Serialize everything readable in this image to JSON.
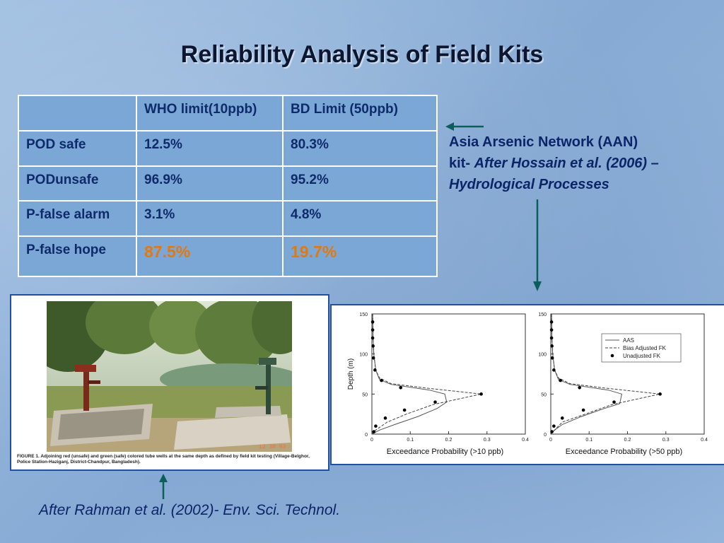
{
  "slide": {
    "title": "Reliability Analysis of Field Kits",
    "table": {
      "headers": [
        "",
        "WHO limit(10ppb)",
        "BD Limit (50ppb)"
      ],
      "rows": [
        {
          "label": "POD safe",
          "who": "12.5%",
          "bd": "80.3%"
        },
        {
          "label": "PODunsafe",
          "who": "96.9%",
          "bd": "95.2%"
        },
        {
          "label": "P-false alarm",
          "who": "3.1%",
          "bd": "4.8%"
        },
        {
          "label": "P-false hope",
          "who": "87.5%",
          "bd": "19.7%"
        }
      ]
    },
    "aan_note": {
      "line1": "Asia Arsenic Network (AAN)",
      "kit_prefix": "kit- ",
      "kit_italic": "After Hossain et al. (2006) –",
      "line3": "Hydrological Processes"
    },
    "caption": "After Rahman et al. (2002)- Env. Sci. Technol.",
    "figure_caption": "FIGURE 1.  Adjoining red (unsafe) and green (safe) colored tube wells at the same depth as defined by field kit testing (Village-Belghor, Police Station-Haziganj, District-Chandpur, Bangladesh).",
    "photo_stamp": "12 30 93",
    "colors": {
      "accent_orange": "#e07a10",
      "text_navy": "#0c2468",
      "arrow": "#0c5e5a"
    }
  },
  "chart_data": [
    {
      "type": "line",
      "xlabel": "Exceedance Probability (>10 ppb)",
      "ylabel": "Depth (m)",
      "xlim": [
        0,
        0.4
      ],
      "ylim": [
        0,
        150
      ],
      "xticks": [
        "0",
        "0.1",
        "0.2",
        "0.3",
        "0.4"
      ],
      "yticks": [
        "0",
        "50",
        "100",
        "150"
      ],
      "legend": null,
      "series": [
        {
          "name": "AAS",
          "style": "solid",
          "points": [
            [
              0.0,
              0
            ],
            [
              0.02,
              5
            ],
            [
              0.06,
              12
            ],
            [
              0.12,
              22
            ],
            [
              0.17,
              32
            ],
            [
              0.195,
              40
            ],
            [
              0.19,
              50
            ],
            [
              0.15,
              55
            ],
            [
              0.05,
              62
            ],
            [
              0.02,
              68
            ],
            [
              0.01,
              80
            ],
            [
              0.005,
              100
            ],
            [
              0.003,
              120
            ],
            [
              0.002,
              150
            ]
          ]
        },
        {
          "name": "Bias Adjusted FK",
          "style": "dashed",
          "points": [
            [
              0.0,
              0
            ],
            [
              0.01,
              5
            ],
            [
              0.04,
              15
            ],
            [
              0.09,
              25
            ],
            [
              0.16,
              37
            ],
            [
              0.285,
              50
            ],
            [
              0.15,
              57
            ],
            [
              0.05,
              63
            ],
            [
              0.02,
              70
            ],
            [
              0.01,
              80
            ],
            [
              0.005,
              100
            ],
            [
              0.003,
              120
            ],
            [
              0.002,
              150
            ]
          ]
        },
        {
          "name": "Unadjusted FK",
          "style": "points",
          "points": [
            [
              0.005,
              3
            ],
            [
              0.01,
              10
            ],
            [
              0.035,
              20
            ],
            [
              0.085,
              30
            ],
            [
              0.165,
              40
            ],
            [
              0.285,
              50
            ],
            [
              0.075,
              58
            ],
            [
              0.025,
              67
            ],
            [
              0.008,
              80
            ],
            [
              0.004,
              95
            ],
            [
              0.003,
              110
            ],
            [
              0.002,
              120
            ],
            [
              0.002,
              130
            ],
            [
              0.002,
              140
            ]
          ]
        }
      ]
    },
    {
      "type": "line",
      "xlabel": "Exceedance Probability (>50 ppb)",
      "ylabel": "",
      "xlim": [
        0,
        0.4
      ],
      "ylim": [
        0,
        150
      ],
      "xticks": [
        "0",
        "0.1",
        "0.2",
        "0.3",
        "0.4"
      ],
      "yticks": [
        "0",
        "50",
        "100",
        "150"
      ],
      "legend": [
        "AAS",
        "Bias Adjusted FK",
        "Unadjusted FK"
      ],
      "series": [
        {
          "name": "AAS",
          "style": "solid",
          "points": [
            [
              0.0,
              0
            ],
            [
              0.01,
              5
            ],
            [
              0.03,
              12
            ],
            [
              0.08,
              22
            ],
            [
              0.14,
              32
            ],
            [
              0.18,
              38
            ],
            [
              0.185,
              50
            ],
            [
              0.15,
              55
            ],
            [
              0.05,
              62
            ],
            [
              0.02,
              68
            ],
            [
              0.01,
              80
            ],
            [
              0.005,
              100
            ],
            [
              0.003,
              120
            ],
            [
              0.002,
              150
            ]
          ]
        },
        {
          "name": "Bias Adjusted FK",
          "style": "dashed",
          "points": [
            [
              0.0,
              0
            ],
            [
              0.01,
              5
            ],
            [
              0.03,
              15
            ],
            [
              0.09,
              25
            ],
            [
              0.16,
              37
            ],
            [
              0.285,
              50
            ],
            [
              0.15,
              57
            ],
            [
              0.05,
              63
            ],
            [
              0.02,
              70
            ],
            [
              0.01,
              80
            ],
            [
              0.005,
              100
            ],
            [
              0.003,
              120
            ],
            [
              0.002,
              150
            ]
          ]
        },
        {
          "name": "Unadjusted FK",
          "style": "points",
          "points": [
            [
              0.003,
              3
            ],
            [
              0.008,
              10
            ],
            [
              0.03,
              20
            ],
            [
              0.085,
              30
            ],
            [
              0.165,
              40
            ],
            [
              0.285,
              50
            ],
            [
              0.075,
              58
            ],
            [
              0.025,
              67
            ],
            [
              0.008,
              80
            ],
            [
              0.004,
              95
            ],
            [
              0.003,
              110
            ],
            [
              0.002,
              120
            ],
            [
              0.002,
              130
            ],
            [
              0.002,
              140
            ]
          ]
        }
      ]
    }
  ]
}
